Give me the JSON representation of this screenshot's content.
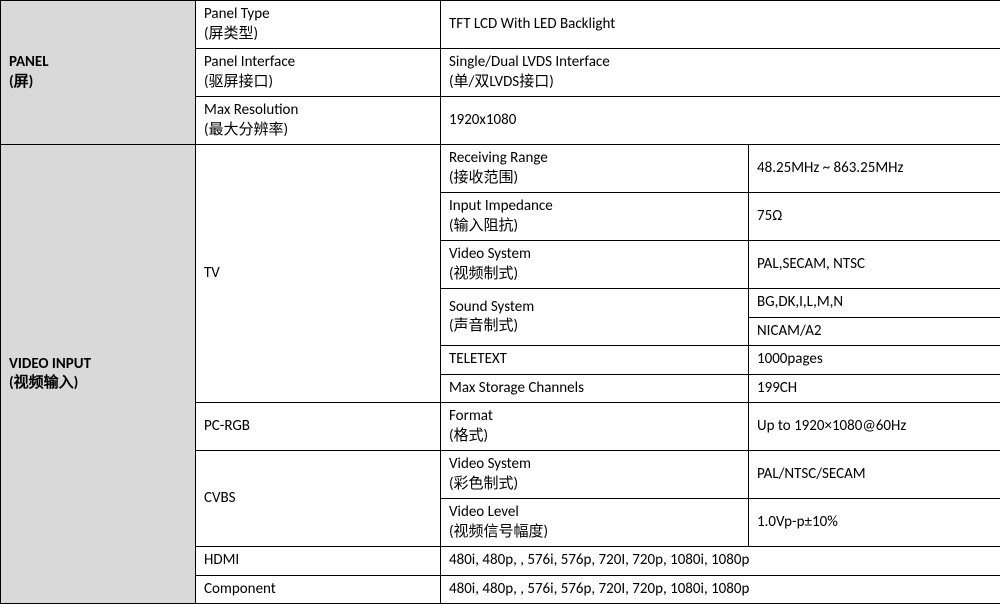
{
  "border_color": "#000000",
  "header_bg": "#d9d9d9",
  "font_family": "Calibri",
  "font_size_pt": 11,
  "panel": {
    "section_label": "PANEL\n(屏)",
    "rows": [
      {
        "label": "Panel Type\n(屏类型)",
        "value": "TFT LCD With LED Backlight"
      },
      {
        "label": "Panel Interface\n(驱屏接口)",
        "value": "Single/Dual LVDS Interface\n(单/双LVDS接口)"
      },
      {
        "label": "Max Resolution\n(最大分辨率)",
        "value": "1920x1080"
      }
    ]
  },
  "video_input": {
    "section_label": "VIDEO INPUT\n(视频输入)",
    "tv": {
      "label": "TV",
      "rows": [
        {
          "label": "Receiving Range\n(接收范围)",
          "value": "48.25MHz ~ 863.25MHz"
        },
        {
          "label": "Input Impedance\n(输入阻抗)",
          "value": "75Ω"
        },
        {
          "label": "Video System\n(视频制式)",
          "value": "PAL,SECAM, NTSC"
        },
        {
          "label": "Sound System\n(声音制式)",
          "value": "BG,DK,I,L,M,N\nNICAM/A2"
        },
        {
          "label": "TELETEXT",
          "value": "1000pages"
        },
        {
          "label": "Max Storage Channels",
          "value": "199CH"
        }
      ]
    },
    "pc_rgb": {
      "label": "PC-RGB",
      "format_label": "Format\n  (格式)",
      "format_value": "Up to 1920×1080@60Hz"
    },
    "cvbs": {
      "label": "CVBS",
      "rows": [
        {
          "label": "Video System\n(彩色制式)",
          "value": "PAL/NTSC/SECAM"
        },
        {
          "label": "Video Level\n(视频信号幅度)",
          "value": "1.0Vp-p±10%"
        }
      ]
    },
    "hdmi": {
      "label": "HDMI",
      "value": "480i, 480p, , 576i, 576p, 720I, 720p, 1080i, 1080p"
    },
    "component": {
      "label": "Component",
      "value": "480i, 480p, , 576i, 576p, 720I, 720p, 1080i, 1080p"
    }
  }
}
